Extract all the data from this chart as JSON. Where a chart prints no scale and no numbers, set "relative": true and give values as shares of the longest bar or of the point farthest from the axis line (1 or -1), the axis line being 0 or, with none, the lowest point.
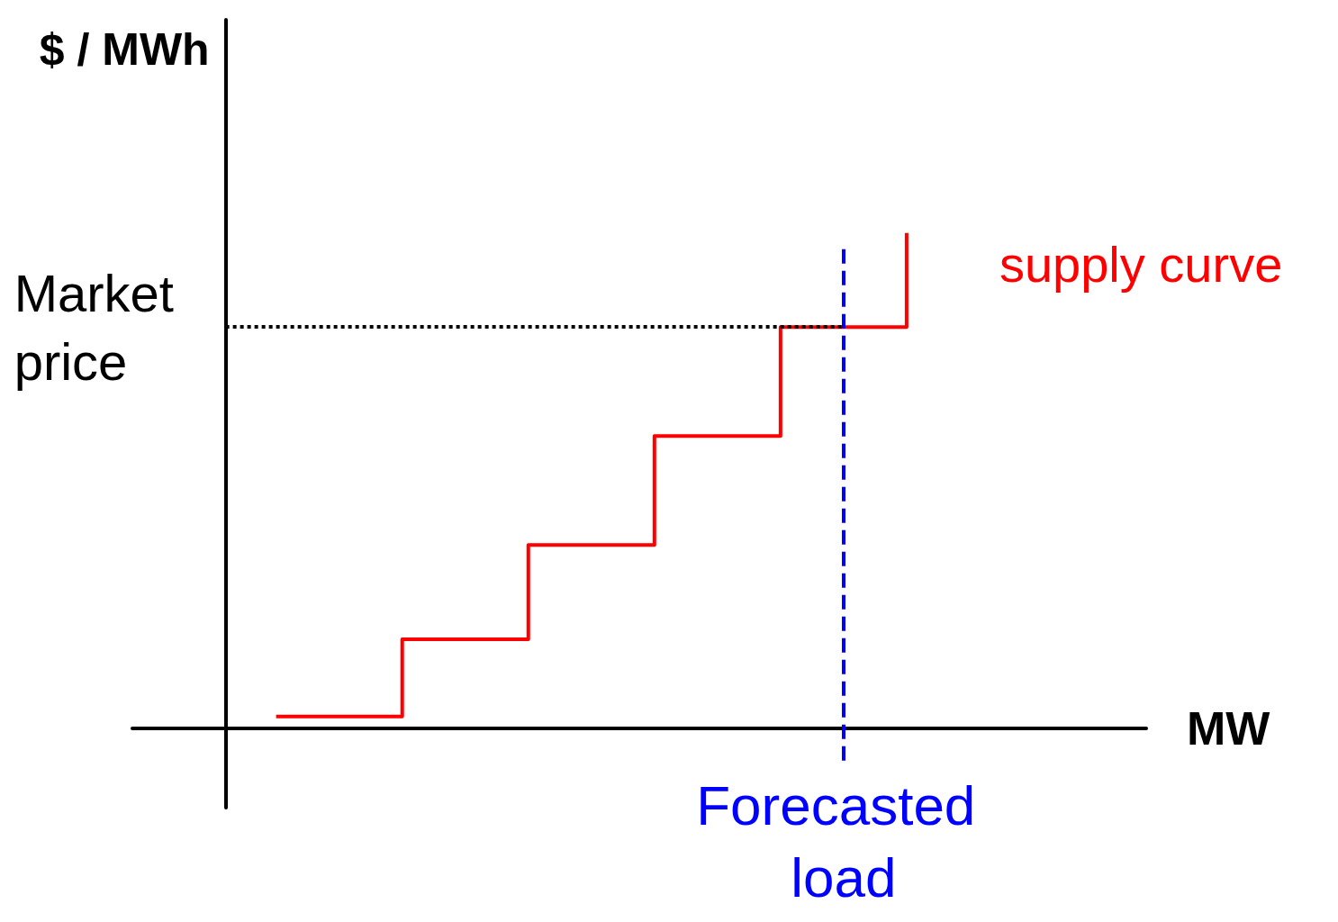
{
  "chart_data": {
    "type": "step",
    "relative": true,
    "xlabel": "MW",
    "ylabel": "$ / MWh",
    "categories": [
      null,
      null,
      null,
      null,
      null,
      null
    ],
    "grid": false,
    "legend": false,
    "series": [
      {
        "name": "supply curve",
        "color": "#ff0000",
        "values": [
          0.024,
          0.18,
          0.37,
          0.59,
          0.81,
          1
        ]
      }
    ],
    "ref_lines": [
      {
        "axis": "y",
        "value": 0.81,
        "label": "Market price",
        "color": "#000000",
        "line_style": "dotted"
      },
      {
        "axis": "x",
        "label": "Forecasted load",
        "color": "#0000ff",
        "line_style": "dashed"
      }
    ]
  }
}
